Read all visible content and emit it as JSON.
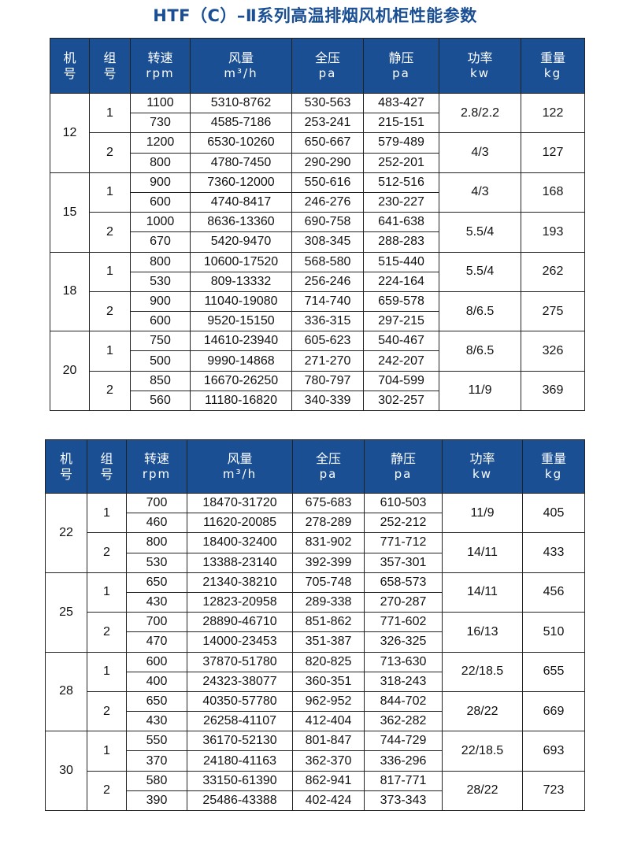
{
  "title": "HTF（C）–Ⅱ系列高温排烟风机柜性能参数",
  "header": [
    {
      "l1": "机",
      "l2": "号"
    },
    {
      "l1": "组",
      "l2": "号"
    },
    {
      "l1": "转速",
      "l2": "rpm"
    },
    {
      "l1": "风量",
      "l2": "m³/h"
    },
    {
      "l1": "全压",
      "l2": "pa"
    },
    {
      "l1": "静压",
      "l2": "pa"
    },
    {
      "l1": "功率",
      "l2": "kw"
    },
    {
      "l1": "重量",
      "l2": "kg"
    }
  ],
  "tables": [
    {
      "machines": [
        {
          "no": "12",
          "groups": [
            {
              "g": "1",
              "power": "2.8/2.2",
              "weight": "122",
              "rows": [
                [
                  "1100",
                  "5310-8762",
                  "530-563",
                  "483-427"
                ],
                [
                  "730",
                  "4585-7186",
                  "253-241",
                  "215-151"
                ]
              ]
            },
            {
              "g": "2",
              "power": "4/3",
              "weight": "127",
              "rows": [
                [
                  "1200",
                  "6530-10260",
                  "650-667",
                  "579-489"
                ],
                [
                  "800",
                  "4780-7450",
                  "290-290",
                  "252-201"
                ]
              ]
            }
          ]
        },
        {
          "no": "15",
          "groups": [
            {
              "g": "1",
              "power": "4/3",
              "weight": "168",
              "rows": [
                [
                  "900",
                  "7360-12000",
                  "550-616",
                  "512-516"
                ],
                [
                  "600",
                  "4740-8417",
                  "246-276",
                  "230-227"
                ]
              ]
            },
            {
              "g": "2",
              "power": "5.5/4",
              "weight": "193",
              "rows": [
                [
                  "1000",
                  "8636-13360",
                  "690-758",
                  "641-638"
                ],
                [
                  "670",
                  "5420-9470",
                  "308-345",
                  "288-283"
                ]
              ]
            }
          ]
        },
        {
          "no": "18",
          "groups": [
            {
              "g": "1",
              "power": "5.5/4",
              "weight": "262",
              "rows": [
                [
                  "800",
                  "10600-17520",
                  "568-580",
                  "515-440"
                ],
                [
                  "530",
                  "809-13332",
                  "256-246",
                  "224-164"
                ]
              ]
            },
            {
              "g": "2",
              "power": "8/6.5",
              "weight": "275",
              "rows": [
                [
                  "900",
                  "11040-19080",
                  "714-740",
                  "659-578"
                ],
                [
                  "600",
                  "9520-15150",
                  "336-315",
                  "297-215"
                ]
              ]
            }
          ]
        },
        {
          "no": "20",
          "groups": [
            {
              "g": "1",
              "power": "8/6.5",
              "weight": "326",
              "rows": [
                [
                  "750",
                  "14610-23940",
                  "605-623",
                  "540-467"
                ],
                [
                  "500",
                  "9990-14868",
                  "271-270",
                  "242-207"
                ]
              ]
            },
            {
              "g": "2",
              "power": "11/9",
              "weight": "369",
              "rows": [
                [
                  "850",
                  "16670-26250",
                  "780-797",
                  "704-599"
                ],
                [
                  "560",
                  "11180-16820",
                  "340-339",
                  "302-257"
                ]
              ]
            }
          ]
        }
      ]
    },
    {
      "machines": [
        {
          "no": "22",
          "groups": [
            {
              "g": "1",
              "power": "11/9",
              "weight": "405",
              "rows": [
                [
                  "700",
                  "18470-31720",
                  "675-683",
                  "610-503"
                ],
                [
                  "460",
                  "11620-20085",
                  "278-289",
                  "252-212"
                ]
              ]
            },
            {
              "g": "2",
              "power": "14/11",
              "weight": "433",
              "rows": [
                [
                  "800",
                  "18400-32400",
                  "831-902",
                  "771-712"
                ],
                [
                  "530",
                  "13388-23140",
                  "392-399",
                  "357-301"
                ]
              ]
            }
          ]
        },
        {
          "no": "25",
          "groups": [
            {
              "g": "1",
              "power": "14/11",
              "weight": "456",
              "rows": [
                [
                  "650",
                  "21340-38210",
                  "705-748",
                  "658-573"
                ],
                [
                  "430",
                  "12823-20958",
                  "289-338",
                  "270-287"
                ]
              ]
            },
            {
              "g": "2",
              "power": "16/13",
              "weight": "510",
              "rows": [
                [
                  "700",
                  "28890-46710",
                  "851-862",
                  "771-602"
                ],
                [
                  "470",
                  "14000-23453",
                  "351-387",
                  "326-325"
                ]
              ]
            }
          ]
        },
        {
          "no": "28",
          "groups": [
            {
              "g": "1",
              "power": "22/18.5",
              "weight": "655",
              "rows": [
                [
                  "600",
                  "37870-51780",
                  "820-825",
                  "713-630"
                ],
                [
                  "400",
                  "24323-38077",
                  "360-351",
                  "318-243"
                ]
              ]
            },
            {
              "g": "2",
              "power": "28/22",
              "weight": "669",
              "rows": [
                [
                  "650",
                  "40350-57780",
                  "962-952",
                  "844-702"
                ],
                [
                  "430",
                  "26258-41107",
                  "412-404",
                  "362-282"
                ]
              ]
            }
          ]
        },
        {
          "no": "30",
          "groups": [
            {
              "g": "1",
              "power": "22/18.5",
              "weight": "693",
              "rows": [
                [
                  "550",
                  "36170-52130",
                  "801-847",
                  "744-729"
                ],
                [
                  "370",
                  "24180-41163",
                  "362-370",
                  "336-296"
                ]
              ]
            },
            {
              "g": "2",
              "power": "28/22",
              "weight": "723",
              "rows": [
                [
                  "580",
                  "33150-61390",
                  "862-941",
                  "817-771"
                ],
                [
                  "390",
                  "25486-43388",
                  "402-424",
                  "373-343"
                ]
              ]
            }
          ]
        }
      ]
    }
  ]
}
